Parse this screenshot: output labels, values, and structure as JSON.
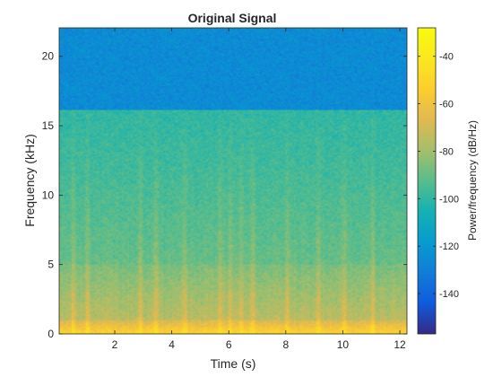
{
  "chart_data": {
    "type": "heatmap",
    "title": "Original Signal",
    "xlabel": "Time (s)",
    "ylabel": "Frequency (kHz)",
    "colorbar_label": "Power/frequency (dB/Hz)",
    "xlim": [
      0.05,
      12.25
    ],
    "ylim": [
      0,
      22.05
    ],
    "clim": [
      -157,
      -28
    ],
    "xticks": [
      2,
      4,
      6,
      8,
      10,
      12
    ],
    "yticks": [
      0,
      5,
      10,
      15,
      20
    ],
    "cticks": [
      -140,
      -120,
      -100,
      -80,
      -60,
      -40
    ],
    "colormap": "parula",
    "grid": false,
    "lowpass_cutoff_khz": 16.1,
    "power_levels_db": {
      "above_cutoff": -125,
      "band_12_16_khz": -100,
      "band_5_12_khz": -90,
      "band_1_5_khz": -75,
      "below_1_khz": -50
    },
    "transient_times_s": [
      0.55,
      1.05,
      2.9,
      3.45,
      4.45,
      5.7,
      6.05,
      6.45,
      6.85,
      8.05,
      9.15,
      10.05,
      11.05
    ]
  },
  "colors": {
    "axes_edge": "#262626",
    "text": "#262626",
    "background": "#ffffff"
  }
}
